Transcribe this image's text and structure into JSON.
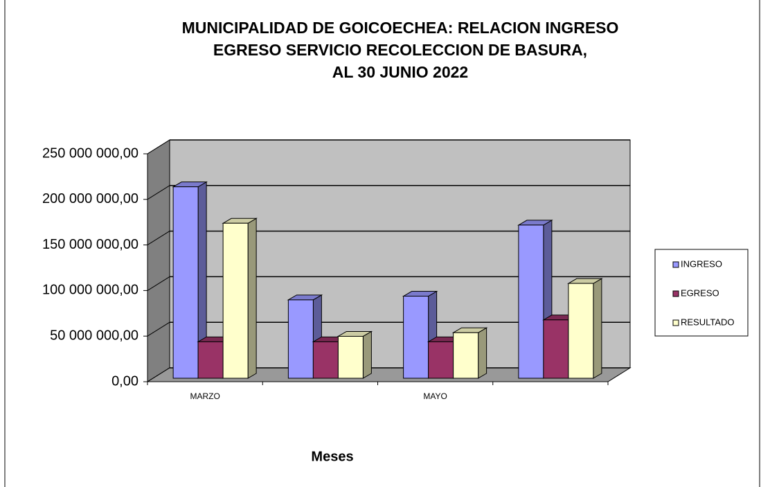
{
  "chart_data": {
    "type": "bar3d",
    "title": [
      "MUNICIPALIDAD DE GOICOECHEA:   RELACION INGRESO",
      "EGRESO SERVICIO RECOLECCION DE BASURA,",
      "AL 30 JUNIO 2022"
    ],
    "x_label": "Meses",
    "categories": [
      "MARZO",
      null,
      "MAYO",
      null
    ],
    "series": [
      {
        "name": "INGRESO",
        "color": "#9999ff",
        "values": [
          210000000,
          86000000,
          90000000,
          168000000
        ]
      },
      {
        "name": "EGRESO",
        "color": "#993366",
        "values": [
          40000000,
          40000000,
          40000000,
          64000000
        ]
      },
      {
        "name": "RESULTADO",
        "color": "#ffffcc",
        "values": [
          170000000,
          46000000,
          50000000,
          104000000
        ]
      }
    ],
    "ylim": [
      0,
      250000000
    ],
    "yticks": [
      {
        "value": 0,
        "label": "0,00"
      },
      {
        "value": 50000000,
        "label": "50 000 000,00"
      },
      {
        "value": 100000000,
        "label": "100 000 000,00"
      },
      {
        "value": 150000000,
        "label": "150 000 000,00"
      },
      {
        "value": 200000000,
        "label": "200 000 000,00"
      },
      {
        "value": 250000000,
        "label": "250 000 000,00"
      }
    ],
    "grid": true,
    "legend": "right"
  }
}
